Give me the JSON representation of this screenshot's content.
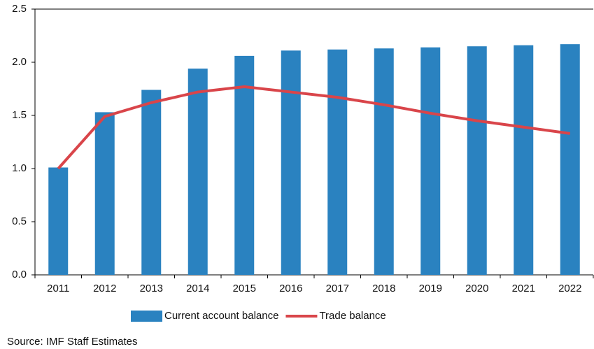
{
  "chart_data": {
    "type": "combo",
    "categories": [
      "2011",
      "2012",
      "2013",
      "2014",
      "2015",
      "2016",
      "2017",
      "2018",
      "2019",
      "2020",
      "2021",
      "2022"
    ],
    "series": [
      {
        "name": "Current account balance",
        "type": "bar",
        "color": "#2a82c0",
        "values": [
          1.01,
          1.53,
          1.74,
          1.94,
          2.06,
          2.11,
          2.12,
          2.13,
          2.14,
          2.15,
          2.16,
          2.17
        ]
      },
      {
        "name": "Trade balance",
        "type": "line",
        "color": "#d9454a",
        "values": [
          1.0,
          1.49,
          1.62,
          1.72,
          1.77,
          1.72,
          1.67,
          1.6,
          1.52,
          1.45,
          1.39,
          1.33
        ]
      }
    ],
    "ylim": [
      0,
      2.5
    ],
    "yticks": [
      {
        "value": 0,
        "label": "0.0"
      },
      {
        "value": 0.5,
        "label": "0.5"
      },
      {
        "value": 1,
        "label": "1.0"
      },
      {
        "value": 1.5,
        "label": "1.5"
      },
      {
        "value": 2,
        "label": "2.0"
      },
      {
        "value": 2.5,
        "label": "2.5"
      }
    ],
    "note": "Source: IMF Staff Estimates"
  }
}
